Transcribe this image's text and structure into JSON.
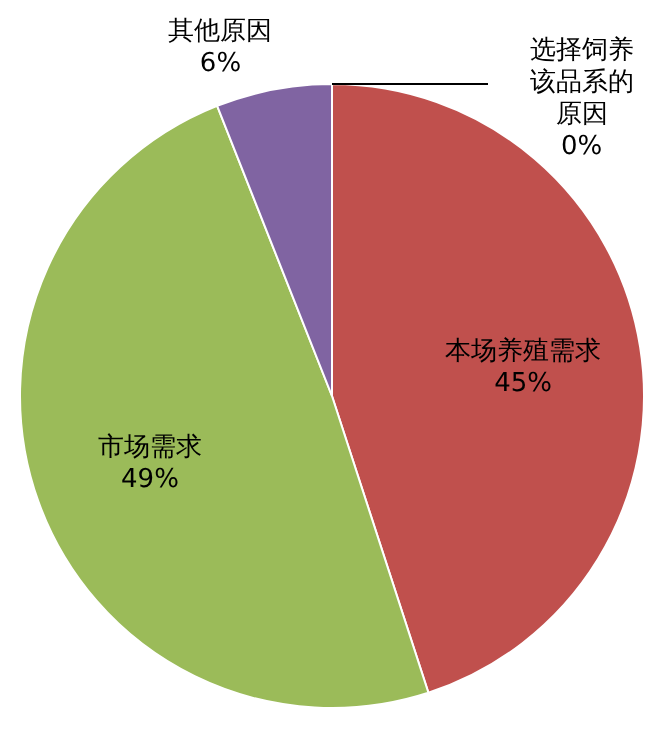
{
  "chart_data": {
    "type": "pie",
    "categories": [
      "选择饲养该品系的原因",
      "本场养殖需求",
      "市场需求",
      "其他原因"
    ],
    "values": [
      0,
      45,
      49,
      6
    ],
    "colors": [
      null,
      "#c0504d",
      "#9bbb59",
      "#8064a2"
    ],
    "value_labels": [
      "0%",
      "45%",
      "49%",
      "6%"
    ]
  }
}
